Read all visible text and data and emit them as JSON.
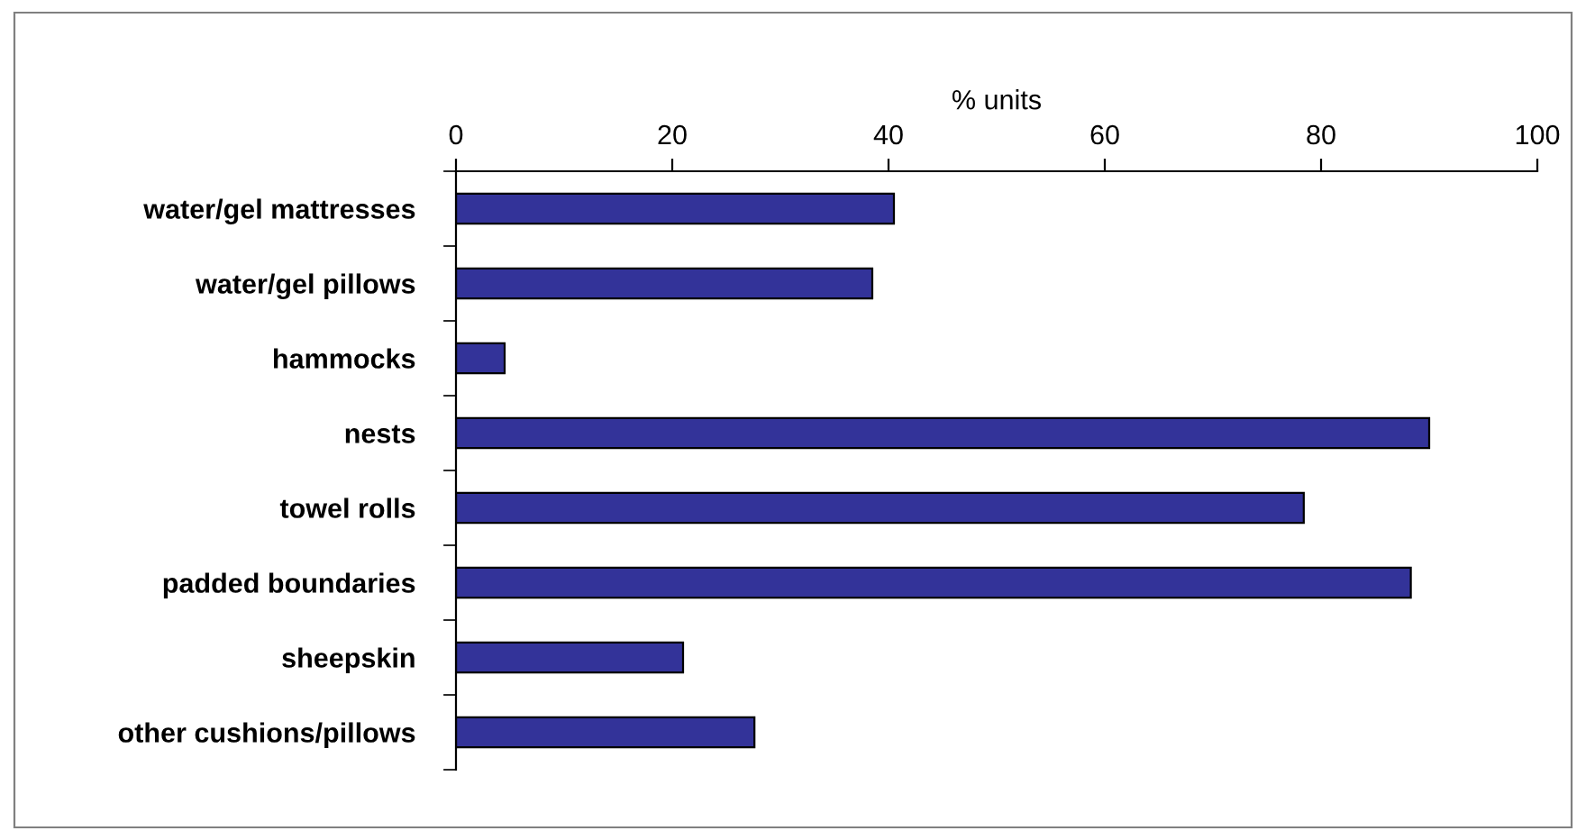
{
  "chart_data": {
    "type": "bar",
    "orientation": "horizontal",
    "xlabel": "% units",
    "categories": [
      "water/gel mattresses",
      "water/gel pillows",
      "hammocks",
      "nests",
      "towel rolls",
      "padded boundaries",
      "sheepskin",
      "other cushions/pillows"
    ],
    "values": [
      40.5,
      38.5,
      4.5,
      90,
      78.4,
      88.3,
      21,
      27.6
    ],
    "color": "#333399",
    "xlim": [
      0,
      100
    ],
    "xticks": [
      0,
      20,
      40,
      60,
      80,
      100
    ],
    "grid": false,
    "legend": false
  }
}
